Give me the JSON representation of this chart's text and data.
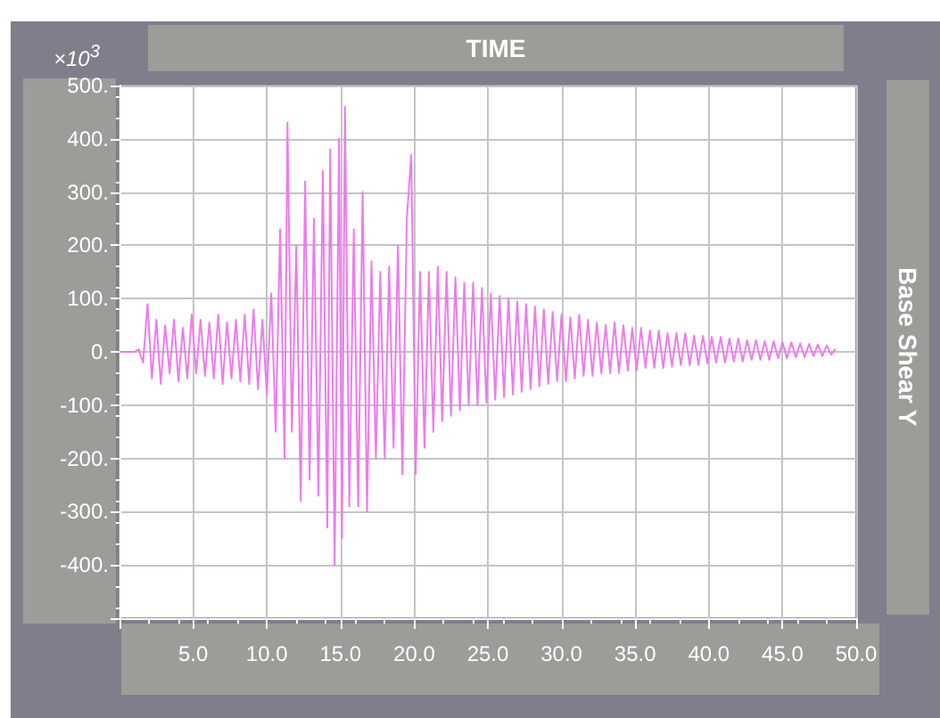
{
  "chart_data": {
    "type": "line",
    "xlabel": "TIME",
    "ylabel": "Base Shear Y",
    "annotations": [
      "×10$^{3}$"
    ],
    "xlim": [
      0,
      50
    ],
    "xticks": [
      {
        "value": 0,
        "label": null
      },
      {
        "value": 5,
        "label": "5.0"
      },
      {
        "value": 10,
        "label": "10.0"
      },
      {
        "value": 15,
        "label": "15.0"
      },
      {
        "value": 20,
        "label": "20.0"
      },
      {
        "value": 25,
        "label": "25.0"
      },
      {
        "value": 30,
        "label": "30.0"
      },
      {
        "value": 35,
        "label": "35.0"
      },
      {
        "value": 40,
        "label": "40.0"
      },
      {
        "value": 45,
        "label": "45.0"
      },
      {
        "value": 50,
        "label": "50.0"
      }
    ],
    "ylim": [
      -500,
      500
    ],
    "yticks": [
      {
        "value": -500,
        "label": null
      },
      {
        "value": -400,
        "label": "-400."
      },
      {
        "value": -300,
        "label": "-300."
      },
      {
        "value": -200,
        "label": "-200."
      },
      {
        "value": -100,
        "label": "-100."
      },
      {
        "value": 0,
        "label": "0."
      },
      {
        "value": 100,
        "label": "100."
      },
      {
        "value": 200,
        "label": "200."
      },
      {
        "value": 300,
        "label": "300."
      },
      {
        "value": 400,
        "label": "400."
      },
      {
        "value": 500,
        "label": "500."
      }
    ],
    "grid": true,
    "marker": "none",
    "line_style": "solid",
    "series": [
      {
        "color": "#ee7bee",
        "x": [
          0,
          1.0,
          1.3,
          1.6,
          1.9,
          2.2,
          2.5,
          2.8,
          3.1,
          3.4,
          3.7,
          4.0,
          4.3,
          4.6,
          4.9,
          5.2,
          5.5,
          5.8,
          6.1,
          6.4,
          6.7,
          7.0,
          7.3,
          7.6,
          7.9,
          8.2,
          8.5,
          8.8,
          9.1,
          9.4,
          9.7,
          10.0,
          10.3,
          10.6,
          10.9,
          11.2,
          11.4,
          11.7,
          12.0,
          12.3,
          12.6,
          12.9,
          13.2,
          13.5,
          13.8,
          14.1,
          14.3,
          14.6,
          14.9,
          15.1,
          15.3,
          15.6,
          15.9,
          16.2,
          16.5,
          16.8,
          17.1,
          17.4,
          17.7,
          18.0,
          18.3,
          18.6,
          18.9,
          19.2,
          19.5,
          19.8,
          20.1,
          20.4,
          20.7,
          21.0,
          21.3,
          21.6,
          21.9,
          22.2,
          22.5,
          22.8,
          23.1,
          23.4,
          23.7,
          24.0,
          24.3,
          24.6,
          24.9,
          25.2,
          25.5,
          25.8,
          26.1,
          26.4,
          26.7,
          27.0,
          27.3,
          27.6,
          27.9,
          28.2,
          28.5,
          28.8,
          29.1,
          29.4,
          29.7,
          30.0,
          30.3,
          30.6,
          30.9,
          31.2,
          31.5,
          31.8,
          32.1,
          32.4,
          32.7,
          33.0,
          33.3,
          33.6,
          33.9,
          34.2,
          34.5,
          34.8,
          35.1,
          35.4,
          35.7,
          36.0,
          36.3,
          36.6,
          36.9,
          37.2,
          37.5,
          37.8,
          38.1,
          38.4,
          38.7,
          39.0,
          39.3,
          39.6,
          39.9,
          40.2,
          40.5,
          40.8,
          41.1,
          41.4,
          41.7,
          42.0,
          42.3,
          42.6,
          42.9,
          43.2,
          43.5,
          43.8,
          44.1,
          44.4,
          44.7,
          45.0,
          45.3,
          45.6,
          45.9,
          46.2,
          46.5,
          46.8,
          47.1,
          47.4,
          47.7,
          48.0,
          48.3,
          48.6
        ],
        "values": [
          0,
          0,
          5,
          -20,
          90,
          -50,
          60,
          -60,
          50,
          -40,
          60,
          -55,
          45,
          -50,
          70,
          -40,
          60,
          -45,
          55,
          -50,
          70,
          -60,
          55,
          -50,
          60,
          -55,
          70,
          -60,
          80,
          -70,
          60,
          -80,
          110,
          -150,
          230,
          -200,
          430,
          -150,
          200,
          -280,
          320,
          -240,
          250,
          -270,
          340,
          -330,
          380,
          -400,
          400,
          -350,
          460,
          -290,
          230,
          -290,
          300,
          -300,
          170,
          -200,
          150,
          -200,
          160,
          -180,
          200,
          -230,
          250,
          370,
          -230,
          150,
          -180,
          150,
          -150,
          160,
          -130,
          150,
          -120,
          140,
          -110,
          130,
          -100,
          130,
          -100,
          120,
          -95,
          110,
          -90,
          105,
          -85,
          100,
          -80,
          95,
          -75,
          90,
          -70,
          85,
          -65,
          80,
          -60,
          75,
          -55,
          70,
          -55,
          65,
          -50,
          70,
          -45,
          60,
          -45,
          55,
          -40,
          50,
          -40,
          55,
          -40,
          50,
          -35,
          45,
          -35,
          45,
          -30,
          40,
          -30,
          40,
          -30,
          35,
          -28,
          35,
          -25,
          35,
          -25,
          30,
          -25,
          30,
          -22,
          28,
          -20,
          28,
          -20,
          25,
          -18,
          25,
          -18,
          22,
          -15,
          22,
          -15,
          20,
          -15,
          20,
          -12,
          18,
          -12,
          18,
          -10,
          16,
          -10,
          15,
          -8,
          14,
          -8,
          12,
          -5,
          5
        ]
      }
    ]
  }
}
